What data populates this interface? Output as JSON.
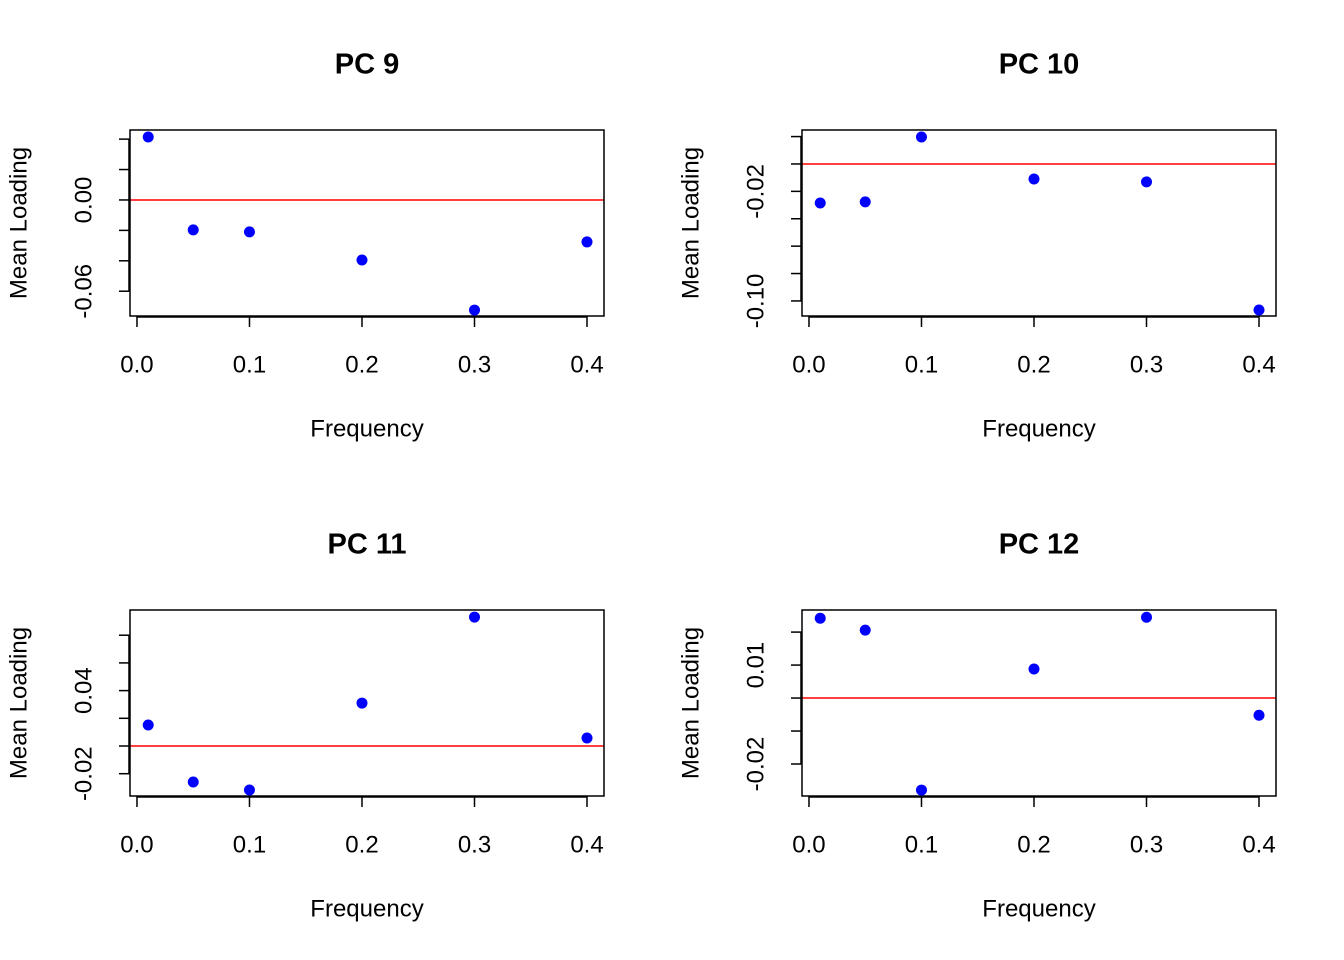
{
  "chart_data": [
    {
      "type": "scatter",
      "title": "PC 9",
      "x_label": "Frequency",
      "y_label": "Mean Loading",
      "x": [
        0.01,
        0.05,
        0.1,
        0.2,
        0.3,
        0.4
      ],
      "values": [
        0.0414,
        -0.0197,
        -0.021,
        -0.0395,
        -0.0724,
        -0.0276
      ],
      "color": "#0000ff",
      "hline": {
        "value": 0,
        "color": "#ff0000"
      },
      "xlim": [
        -0.0062,
        0.4151
      ],
      "xticks": [
        {
          "value": 0,
          "label": "0.0"
        },
        0.1,
        0.2,
        0.3,
        0.4
      ],
      "ylim": [
        -0.0763,
        0.046
      ],
      "yticks": [
        0.04,
        0.02,
        0,
        -0.02,
        -0.04,
        -0.06
      ],
      "ytick_labels": [
        {
          "value": 0,
          "label": "0.00"
        },
        {
          "value": -0.06,
          "label": "-0.06"
        }
      ]
    },
    {
      "type": "scatter",
      "title": "PC 10",
      "x_label": "Frequency",
      "y_label": "Mean Loading",
      "x": [
        0.01,
        0.05,
        0.1,
        0.2,
        0.3,
        0.4
      ],
      "values": [
        -0.0285,
        -0.0277,
        0.0197,
        -0.011,
        -0.0131,
        -0.1066
      ],
      "color": "#0000ff",
      "hline": {
        "value": 0,
        "color": "#ff0000"
      },
      "xlim": [
        -0.0062,
        0.4151
      ],
      "xticks": [
        {
          "value": 0,
          "label": "0.0"
        },
        0.1,
        0.2,
        0.3,
        0.4
      ],
      "ylim": [
        -0.111,
        0.0248
      ],
      "yticks": [
        0.02,
        0,
        -0.02,
        -0.04,
        -0.06,
        -0.08,
        -0.1
      ],
      "ytick_labels": [
        {
          "value": -0.02,
          "label": "-0.02"
        },
        {
          "value": -0.1,
          "label": "-0.10"
        }
      ]
    },
    {
      "type": "scatter",
      "title": "PC 11",
      "x_label": "Frequency",
      "y_label": "Mean Loading",
      "x": [
        0.01,
        0.05,
        0.1,
        0.2,
        0.3,
        0.4
      ],
      "values": [
        0.0152,
        -0.026,
        -0.0318,
        0.031,
        0.0931,
        0.0058
      ],
      "color": "#0000ff",
      "hline": {
        "value": 0,
        "color": "#ff0000"
      },
      "xlim": [
        -0.0062,
        0.4151
      ],
      "xticks": [
        {
          "value": 0,
          "label": "0.0"
        },
        0.1,
        0.2,
        0.3,
        0.4
      ],
      "ylim": [
        -0.0361,
        0.0982
      ],
      "yticks": [
        0.08,
        0.06,
        0.04,
        0.02,
        0,
        -0.02
      ],
      "ytick_labels": [
        {
          "value": 0.04,
          "label": "0.04"
        },
        {
          "value": -0.02,
          "label": "-0.02"
        }
      ]
    },
    {
      "type": "scatter",
      "title": "PC 12",
      "x_label": "Frequency",
      "y_label": "Mean Loading",
      "x": [
        0.01,
        0.05,
        0.1,
        0.2,
        0.3,
        0.4
      ],
      "values": [
        0.0242,
        0.0206,
        -0.0279,
        0.0088,
        0.0245,
        -0.0052
      ],
      "color": "#0000ff",
      "hline": {
        "value": 0,
        "color": "#ff0000"
      },
      "xlim": [
        -0.0062,
        0.4151
      ],
      "xticks": [
        {
          "value": 0,
          "label": "0.0"
        },
        0.1,
        0.2,
        0.3,
        0.4
      ],
      "ylim": [
        -0.0297,
        0.0267
      ],
      "yticks": [
        0.02,
        0.01,
        0,
        -0.01,
        -0.02
      ],
      "ytick_labels": [
        {
          "value": 0.01,
          "label": "0.01"
        },
        {
          "value": -0.02,
          "label": "-0.02"
        }
      ]
    }
  ]
}
